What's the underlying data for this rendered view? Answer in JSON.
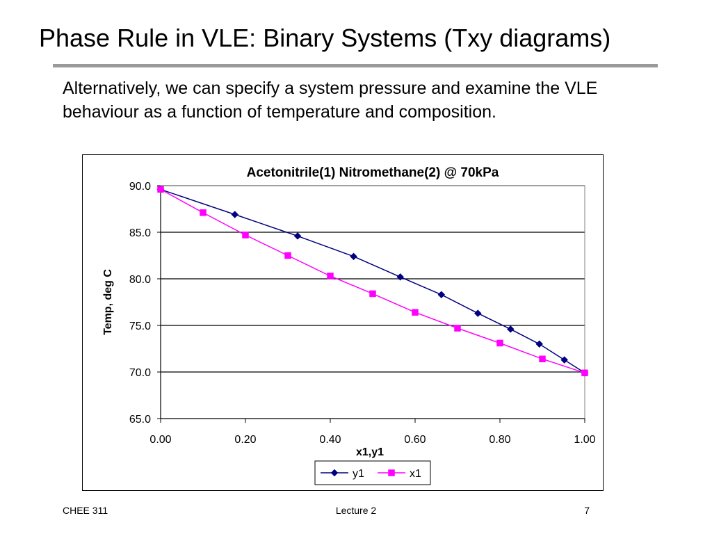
{
  "slide": {
    "title": "Phase Rule in VLE: Binary Systems (Txy diagrams)",
    "body": "Alternatively, we can specify a system pressure and examine the VLE behaviour as a function of temperature and composition."
  },
  "footer": {
    "course": "CHEE 311",
    "lecture": "Lecture 2",
    "page": "7"
  },
  "colors": {
    "y1": "#000080",
    "x1": "#FF00FF",
    "grid": "#000000",
    "rule": "#9a9a9a"
  },
  "chart_data": {
    "type": "line",
    "title": "Acetonitrile(1) Nitromethane(2) @ 70kPa",
    "xlabel": "x1,y1",
    "ylabel": "Temp, deg C",
    "xlim": [
      0,
      1
    ],
    "ylim": [
      65,
      90
    ],
    "xticks": [
      0,
      0.2,
      0.4,
      0.6,
      0.8,
      1.0
    ],
    "xtick_labels": [
      "0.00",
      "0.20",
      "0.40",
      "0.60",
      "0.80",
      "1.00"
    ],
    "yticks": [
      65,
      70,
      75,
      80,
      85,
      90
    ],
    "ytick_labels": [
      "65.0",
      "70.0",
      "75.0",
      "80.0",
      "85.0",
      "90.0"
    ],
    "grid": "horizontal",
    "legend_position": "bottom",
    "series": [
      {
        "name": "y1",
        "marker": "diamond",
        "color": "#000080",
        "points": [
          [
            0.0,
            89.6
          ],
          [
            0.175,
            86.9
          ],
          [
            0.323,
            84.6
          ],
          [
            0.455,
            82.4
          ],
          [
            0.565,
            80.2
          ],
          [
            0.662,
            78.3
          ],
          [
            0.748,
            76.3
          ],
          [
            0.825,
            74.6
          ],
          [
            0.893,
            73.0
          ],
          [
            0.952,
            71.3
          ],
          [
            1.0,
            69.9
          ]
        ]
      },
      {
        "name": "x1",
        "marker": "square",
        "color": "#FF00FF",
        "points": [
          [
            0.0,
            89.6
          ],
          [
            0.1,
            87.1
          ],
          [
            0.2,
            84.7
          ],
          [
            0.3,
            82.5
          ],
          [
            0.4,
            80.3
          ],
          [
            0.5,
            78.4
          ],
          [
            0.6,
            76.4
          ],
          [
            0.7,
            74.7
          ],
          [
            0.8,
            73.1
          ],
          [
            0.9,
            71.4
          ],
          [
            1.0,
            69.9
          ]
        ]
      }
    ]
  }
}
